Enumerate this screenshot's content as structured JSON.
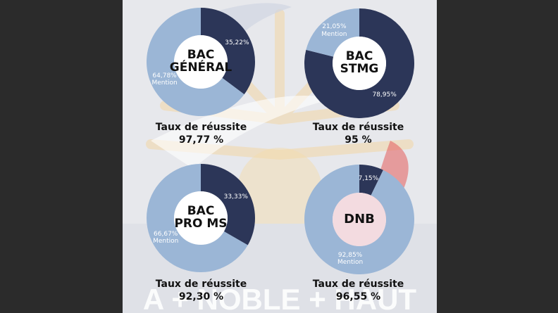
{
  "colors": {
    "dark": "#2c3658",
    "light": "#9bb6d6",
    "dnb_center": "#f3dbe0",
    "center": "#ffffff",
    "page_bg": "#2b2b2b",
    "panel_bg": "#e7e8ec"
  },
  "watermark_text": "A + NOBLE + HAUT",
  "chart_data": [
    {
      "type": "pie",
      "center_label": [
        "BAC",
        "GÉNÉRAL"
      ],
      "caption": "Taux de réussite",
      "rate": "97,77 %",
      "slices": [
        {
          "label": "",
          "value": 35.22,
          "display": "35,22%",
          "color": "#2c3658"
        },
        {
          "label": "Mention",
          "value": 64.78,
          "display": "64,78%",
          "color": "#9bb6d6"
        }
      ]
    },
    {
      "type": "pie",
      "center_label": [
        "BAC",
        "STMG"
      ],
      "caption": "Taux de réussite",
      "rate": "95 %",
      "slices": [
        {
          "label": "",
          "value": 78.95,
          "display": "78,95%",
          "color": "#2c3658"
        },
        {
          "label": "Mention",
          "value": 21.05,
          "display": "21,05%",
          "color": "#9bb6d6"
        }
      ]
    },
    {
      "type": "pie",
      "center_label": [
        "BAC",
        "PRO MS"
      ],
      "caption": "Taux de réussite",
      "rate": "92,30 %",
      "slices": [
        {
          "label": "",
          "value": 33.33,
          "display": "33,33%",
          "color": "#2c3658"
        },
        {
          "label": "Mention",
          "value": 66.67,
          "display": "66,67%",
          "color": "#9bb6d6"
        }
      ]
    },
    {
      "type": "pie",
      "center_label": [
        "DNB"
      ],
      "caption": "Taux de réussite",
      "rate": "96,55 %",
      "slices": [
        {
          "label": "",
          "value": 7.15,
          "display": "7,15%",
          "color": "#2c3658"
        },
        {
          "label": "Mention",
          "value": 92.85,
          "display": "92,85%",
          "color": "#9bb6d6"
        }
      ]
    }
  ]
}
